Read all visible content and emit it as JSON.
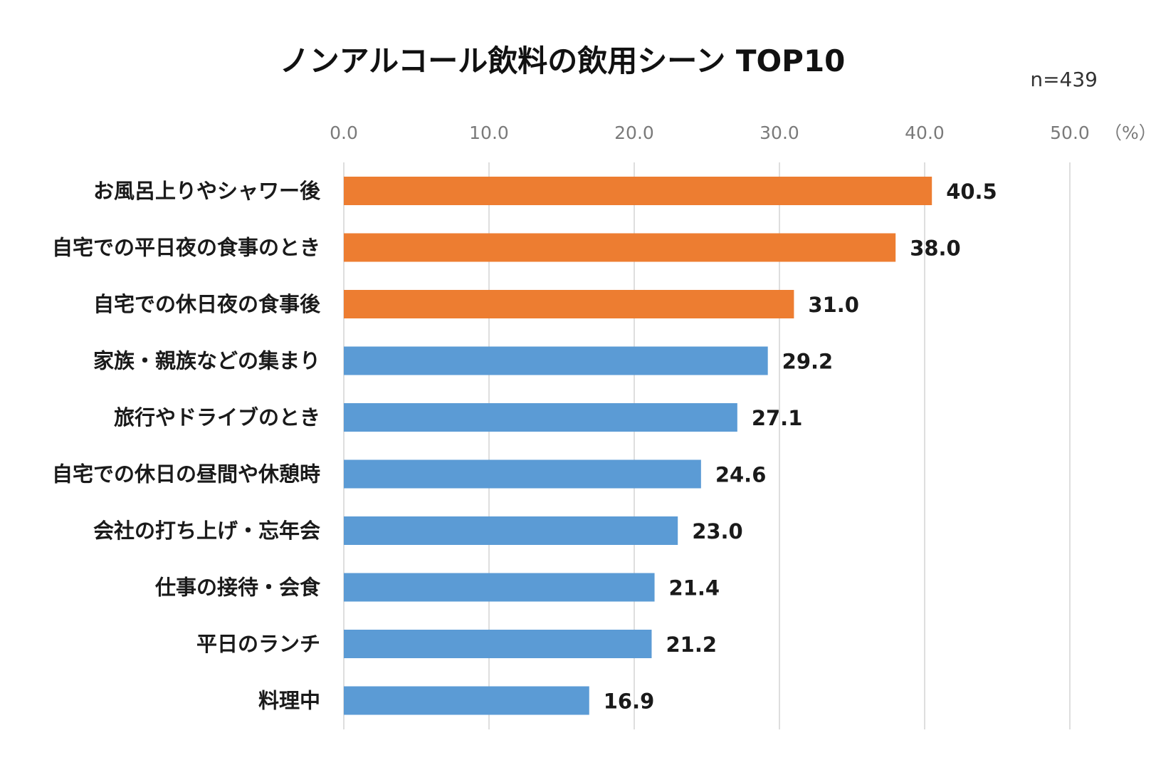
{
  "chart_data": {
    "type": "bar",
    "orientation": "horizontal",
    "title": "ノンアルコール飲料の飲用シーン TOP10",
    "sample_size": "n=439",
    "unit_label": "（%）",
    "xlim": [
      0,
      50
    ],
    "ticks": [
      0,
      10,
      20,
      30,
      40,
      50
    ],
    "tick_labels": [
      "0.0",
      "10.0",
      "20.0",
      "30.0",
      "40.0",
      "50.0"
    ],
    "grid": true,
    "categories": [
      "お風呂上りやシャワー後",
      "自宅での平日夜の食事のとき",
      "自宅での休日夜の食事後",
      "家族・親族などの集まり",
      "旅行やドライブのとき",
      "自宅での休日の昼間や休憩時",
      "会社の打ち上げ・忘年会",
      "仕事の接待・会食",
      "平日のランチ",
      "料理中"
    ],
    "values": [
      40.5,
      38.0,
      31.0,
      29.2,
      27.1,
      24.6,
      23.0,
      21.4,
      21.2,
      16.9
    ],
    "value_labels": [
      "40.5",
      "38.0",
      "31.0",
      "29.2",
      "27.1",
      "24.6",
      "23.0",
      "21.4",
      "21.2",
      "16.9"
    ],
    "highlight_count": 3,
    "colors": {
      "highlight": "#ED7D31",
      "default": "#5B9BD5"
    }
  }
}
